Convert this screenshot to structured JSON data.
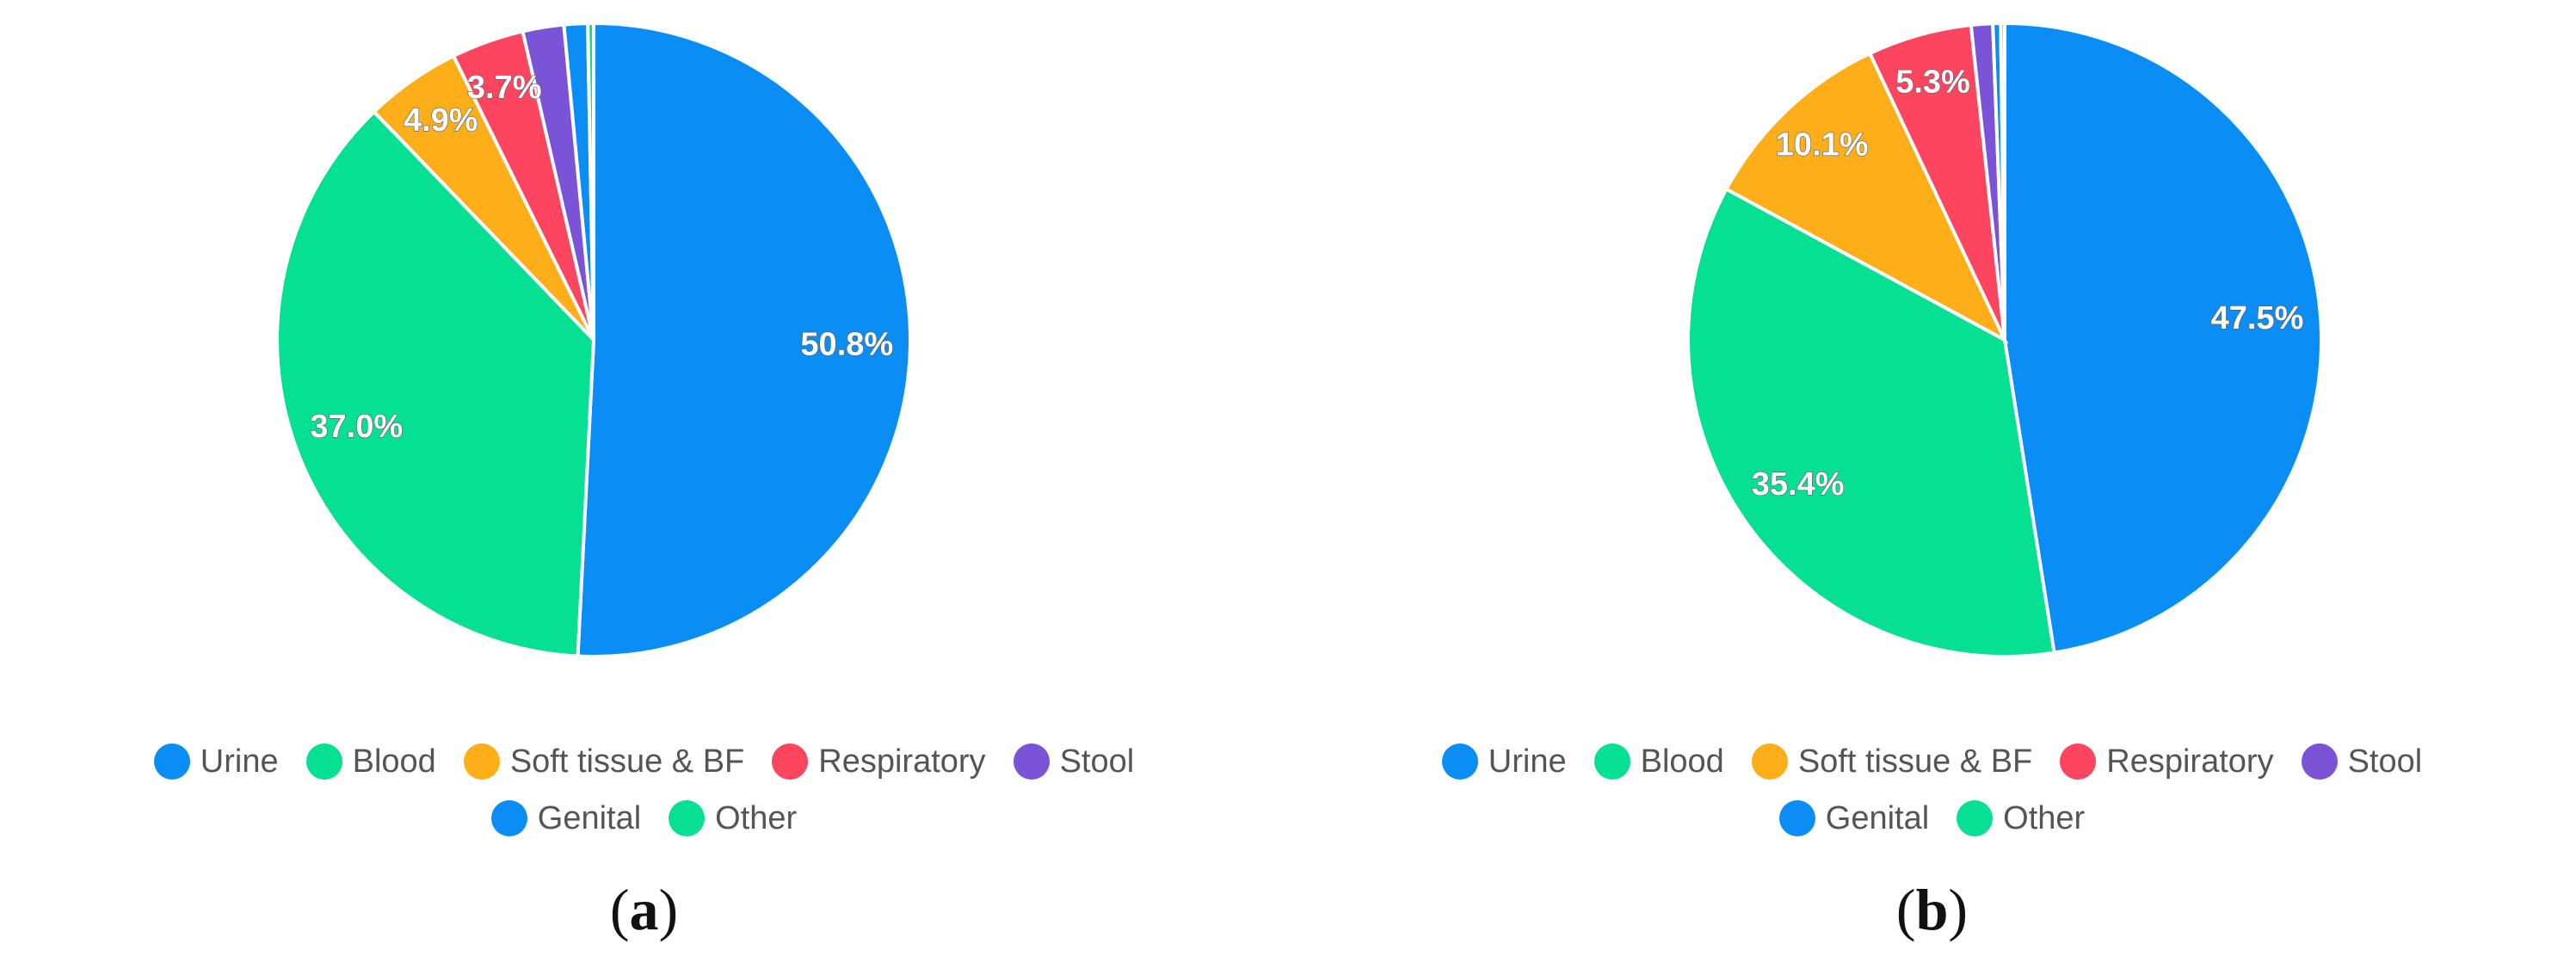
{
  "chart_data": [
    {
      "type": "pie",
      "caption_open": "(",
      "caption_letter": "a",
      "caption_close": ")",
      "legend_rows": [
        [
          0,
          1,
          2,
          3,
          4
        ],
        [
          5,
          6
        ]
      ],
      "slices": [
        {
          "name": "Urine",
          "value": 50.8,
          "label": "50.8%",
          "color": "#0a8ef5"
        },
        {
          "name": "Blood",
          "value": 37.0,
          "label": "37.0%",
          "color": "#06e092"
        },
        {
          "name": "Soft tissue & BF",
          "value": 4.9,
          "label": "4.9%",
          "color": "#fdae19"
        },
        {
          "name": "Respiratory",
          "value": 3.7,
          "label": "3.7%",
          "color": "#fe4560"
        },
        {
          "name": "Stool",
          "value": 2.1,
          "label": "",
          "color": "#7a53d6"
        },
        {
          "name": "Genital",
          "value": 1.2,
          "label": "",
          "color": "#0a8ef5"
        },
        {
          "name": "Other",
          "value": 0.3,
          "label": "",
          "color": "#06e092"
        }
      ]
    },
    {
      "type": "pie",
      "caption_open": "(",
      "caption_letter": "b",
      "caption_close": ")",
      "legend_rows": [
        [
          0,
          1,
          2,
          3,
          4
        ],
        [
          5,
          6
        ]
      ],
      "slices": [
        {
          "name": "Urine",
          "value": 47.5,
          "label": "47.5%",
          "color": "#0a8ef5"
        },
        {
          "name": "Blood",
          "value": 35.4,
          "label": "35.4%",
          "color": "#06e092"
        },
        {
          "name": "Soft tissue & BF",
          "value": 10.1,
          "label": "10.1%",
          "color": "#fdae19"
        },
        {
          "name": "Respiratory",
          "value": 5.3,
          "label": "5.3%",
          "color": "#fe4560"
        },
        {
          "name": "Stool",
          "value": 1.1,
          "label": "",
          "color": "#7a53d6"
        },
        {
          "name": "Genital",
          "value": 0.4,
          "label": "",
          "color": "#0a8ef5"
        },
        {
          "name": "Other",
          "value": 0.2,
          "label": "",
          "color": "#06e092"
        }
      ]
    }
  ]
}
